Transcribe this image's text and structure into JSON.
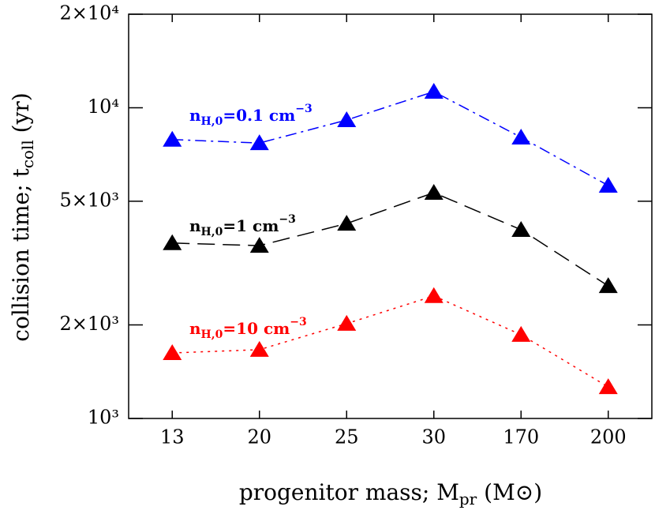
{
  "chart_data": {
    "type": "line",
    "xlabel": {
      "main": "progenitor mass; M",
      "sub": "pr",
      "tail": " (M⊙)"
    },
    "ylabel": {
      "main": "collision time; t",
      "sub": "coll",
      "tail": " (yr)"
    },
    "categories": [
      "13",
      "20",
      "25",
      "30",
      "170",
      "200"
    ],
    "yscale": "log",
    "ylim": [
      1000,
      20000
    ],
    "yticks": [
      {
        "value": 1000,
        "label": "10³"
      },
      {
        "value": 2000,
        "label": "2×10³"
      },
      {
        "value": 5000,
        "label": "5×10³"
      },
      {
        "value": 10000,
        "label": "10⁴"
      },
      {
        "value": 20000,
        "label": "2×10⁴"
      }
    ],
    "series": [
      {
        "label": {
          "main": "n",
          "sub": "H,0",
          "rest": "=0.1 cm",
          "sup": "−3"
        },
        "color": "#0000ff",
        "linestyle": "dashdot",
        "marker": "triangle",
        "values": [
          7900,
          7700,
          9130,
          11270,
          8030,
          5620
        ]
      },
      {
        "label": {
          "main": "n",
          "sub": "H,0",
          "rest": "=1 cm",
          "sup": "−3"
        },
        "color": "#000000",
        "linestyle": "dashed",
        "marker": "triangle",
        "values": [
          3670,
          3600,
          4240,
          5330,
          4050,
          2670
        ]
      },
      {
        "label": {
          "main": "n",
          "sub": "H,0",
          "rest": "=10 cm",
          "sup": "−3"
        },
        "color": "#ff0000",
        "linestyle": "dotted",
        "marker": "triangle",
        "values": [
          1625,
          1665,
          2020,
          2480,
          1860,
          1263
        ]
      }
    ]
  }
}
